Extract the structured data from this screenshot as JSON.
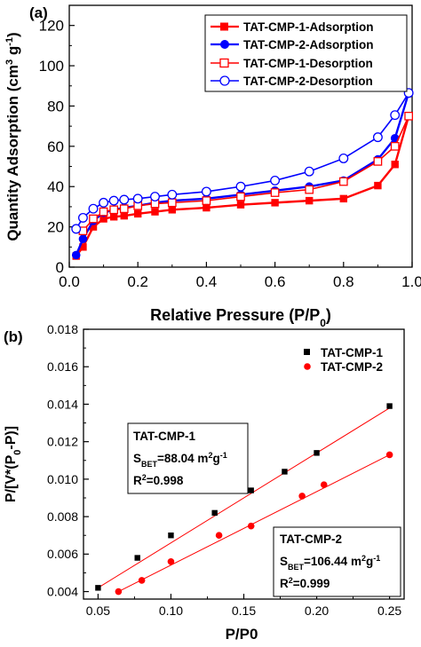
{
  "chart_data": [
    {
      "type": "line",
      "panel_label": "(a)",
      "xlabel": "Relative Pressure (P/P",
      "xlabel_sub": "0",
      "xlabel_end": ")",
      "ylabel": "Quantity Adsorption (cm",
      "ylabel_sup": "3",
      "ylabel_mid": " g",
      "ylabel_sup2": "-1",
      "ylabel_end": ")",
      "xlim": [
        0.0,
        1.0
      ],
      "ylim": [
        0,
        130
      ],
      "xticks": [
        0.0,
        0.2,
        0.4,
        0.6,
        0.8,
        1.0
      ],
      "xtick_labels": [
        "0.0",
        "0.2",
        "0.4",
        "0.6",
        "0.8",
        "1.0"
      ],
      "yticks": [
        0,
        20,
        40,
        60,
        80,
        100,
        120
      ],
      "ytick_labels": [
        "0",
        "20",
        "40",
        "60",
        "80",
        "100",
        "120"
      ],
      "grid": false,
      "legend_position": "top-right",
      "series": [
        {
          "name": "TAT-CMP-1-Adsorption",
          "color": "#ff0000",
          "marker": "filled-square",
          "x": [
            0.02,
            0.04,
            0.07,
            0.1,
            0.13,
            0.16,
            0.2,
            0.25,
            0.3,
            0.4,
            0.5,
            0.6,
            0.7,
            0.8,
            0.9,
            0.95,
            0.99
          ],
          "y": [
            5.5,
            10,
            20,
            24,
            25,
            25.5,
            26.5,
            27.5,
            28.5,
            29.5,
            31,
            32,
            33,
            34,
            40.5,
            51,
            75
          ]
        },
        {
          "name": "TAT-CMP-2-Adsorption",
          "color": "#0000ff",
          "marker": "filled-circle",
          "x": [
            0.02,
            0.04,
            0.07,
            0.1,
            0.13,
            0.16,
            0.2,
            0.25,
            0.3,
            0.4,
            0.5,
            0.6,
            0.7,
            0.8,
            0.9,
            0.95,
            0.99
          ],
          "y": [
            6,
            14,
            23,
            27,
            28.5,
            29.5,
            30.5,
            32,
            33,
            34,
            36,
            38,
            40,
            43,
            53.5,
            64,
            86.5
          ]
        },
        {
          "name": "TAT-CMP-1-Desorption",
          "color": "#ff0000",
          "marker": "open-square",
          "x": [
            0.99,
            0.95,
            0.9,
            0.8,
            0.7,
            0.6,
            0.5,
            0.4,
            0.3,
            0.25,
            0.2,
            0.16,
            0.13,
            0.1,
            0.07,
            0.04
          ],
          "y": [
            75,
            60,
            52.5,
            42.5,
            38.5,
            37,
            35,
            33,
            32,
            31.5,
            30.5,
            29,
            28.5,
            27.5,
            24,
            18
          ]
        },
        {
          "name": "TAT-CMP-2-Desorption",
          "color": "#0000ff",
          "marker": "open-circle",
          "x": [
            0.99,
            0.95,
            0.9,
            0.8,
            0.7,
            0.6,
            0.5,
            0.4,
            0.3,
            0.25,
            0.2,
            0.16,
            0.13,
            0.1,
            0.07,
            0.04,
            0.02
          ],
          "y": [
            86.5,
            75.5,
            64.5,
            54,
            47.5,
            43,
            40,
            37.5,
            36,
            35,
            34,
            33.5,
            33,
            32,
            29,
            24.5,
            19
          ]
        }
      ]
    },
    {
      "type": "scatter",
      "panel_label": "(b)",
      "xlabel": "P/P0",
      "ylabel": "P/[V*(P",
      "ylabel_sub": "0",
      "ylabel_end": "-P)]",
      "xlim": [
        0.04,
        0.26
      ],
      "ylim": [
        0.0036,
        0.018
      ],
      "xticks": [
        0.05,
        0.1,
        0.15,
        0.2,
        0.25
      ],
      "xtick_labels": [
        "0.05",
        "0.10",
        "0.15",
        "0.20",
        "0.25"
      ],
      "yticks": [
        0.004,
        0.006,
        0.008,
        0.01,
        0.012,
        0.014,
        0.016,
        0.018
      ],
      "ytick_labels": [
        "0.004",
        "0.006",
        "0.008",
        "0.010",
        "0.012",
        "0.014",
        "0.016",
        "0.018"
      ],
      "grid": false,
      "legend_position": "top-right",
      "series": [
        {
          "name": "TAT-CMP-1",
          "color": "#000000",
          "line_color": "#ff0000",
          "marker": "filled-square",
          "x": [
            0.05,
            0.077,
            0.1,
            0.13,
            0.155,
            0.178,
            0.2,
            0.25
          ],
          "y": [
            0.0042,
            0.0058,
            0.007,
            0.0082,
            0.0094,
            0.0104,
            0.0114,
            0.0139
          ],
          "fit": [
            [
              0.05,
              0.0042
            ],
            [
              0.25,
              0.0138
            ]
          ]
        },
        {
          "name": "TAT-CMP-2",
          "color": "#ff0000",
          "line_color": "#ff0000",
          "marker": "filled-circle",
          "x": [
            0.064,
            0.08,
            0.1,
            0.133,
            0.155,
            0.19,
            0.205,
            0.25
          ],
          "y": [
            0.004,
            0.0046,
            0.0056,
            0.007,
            0.0075,
            0.0091,
            0.0097,
            0.0113
          ],
          "fit": [
            [
              0.064,
              0.004
            ],
            [
              0.25,
              0.0113
            ]
          ]
        }
      ],
      "annotations": [
        {
          "title": "TAT-CMP-1",
          "s_prefix": "S",
          "s_sub": "BET",
          "s_value": "=88.04 m",
          "s_sup": "2",
          "s_unit": "g",
          "s_unit_sup": "-1",
          "r_prefix": "R",
          "r_sup": "2",
          "r_value": "=0.998"
        },
        {
          "title": "TAT-CMP-2",
          "s_prefix": "S",
          "s_sub": "BET",
          "s_value": "=106.44 m",
          "s_sup": "2",
          "s_unit": "g",
          "s_unit_sup": "-1",
          "r_prefix": "R",
          "r_sup": "2",
          "r_value": "=0.999"
        }
      ]
    }
  ]
}
